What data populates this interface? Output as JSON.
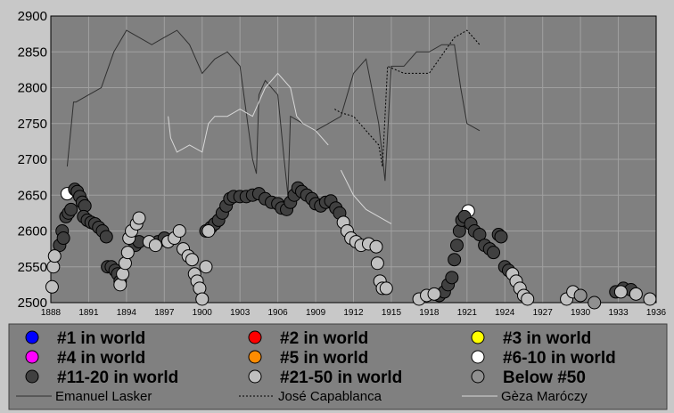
{
  "chart_data": {
    "type": "scatter",
    "xlim": [
      1888,
      1936
    ],
    "ylim": [
      2500,
      2900
    ],
    "xticks": [
      1888,
      1891,
      1894,
      1897,
      1900,
      1903,
      1906,
      1909,
      1912,
      1915,
      1918,
      1921,
      1924,
      1927,
      1930,
      1933,
      1936
    ],
    "yticks": [
      2500,
      2550,
      2600,
      2650,
      2700,
      2750,
      2800,
      2850,
      2900
    ],
    "grid": true,
    "series": [
      {
        "name": "#1 in world",
        "color": "#0000ff",
        "mode": "markers",
        "x": [],
        "values": []
      },
      {
        "name": "#2 in world",
        "color": "#ff0000",
        "mode": "markers",
        "x": [],
        "values": []
      },
      {
        "name": "#3 in world",
        "color": "#ffff00",
        "mode": "markers",
        "x": [],
        "values": []
      },
      {
        "name": "#4 in world",
        "color": "#ff00ff",
        "mode": "markers",
        "x": [],
        "values": []
      },
      {
        "name": "#5 in world",
        "color": "#ff8c00",
        "mode": "markers",
        "x": [],
        "values": []
      },
      {
        "name": "#6-10 in world",
        "color": "#ffffff",
        "mode": "markers",
        "x": [
          1889.3,
          1921.1
        ],
        "values": [
          2652,
          2628
        ]
      },
      {
        "name": "#11-20 in world",
        "color": "#404040",
        "mode": "markers",
        "x": [
          1888.7,
          1888.9,
          1889.0,
          1889.2,
          1889.4,
          1889.6,
          1889.9,
          1890.1,
          1890.3,
          1890.5,
          1890.7,
          1890.6,
          1890.9,
          1891.2,
          1891.5,
          1891.8,
          1892.1,
          1892.4,
          1892.5,
          1892.8,
          1893.1,
          1893.3,
          1893.5,
          1894.7,
          1895.0,
          1896.5,
          1897.0,
          1900.3,
          1900.7,
          1901.0,
          1901.3,
          1901.6,
          1901.9,
          1902.2,
          1902.5,
          1903.0,
          1903.5,
          1904.0,
          1904.5,
          1905.0,
          1905.5,
          1906.0,
          1906.3,
          1906.7,
          1907.0,
          1907.3,
          1907.6,
          1907.9,
          1908.3,
          1908.7,
          1909.0,
          1909.4,
          1909.8,
          1910.2,
          1910.6,
          1910.9,
          1918.8,
          1919.2,
          1919.5,
          1919.8,
          1920.0,
          1920.2,
          1920.4,
          1920.6,
          1920.8,
          1921.3,
          1921.6,
          1922.0,
          1922.4,
          1922.8,
          1923.1,
          1923.5,
          1923.7,
          1924.0,
          1924.3,
          1932.8,
          1933.4,
          1934.0
        ],
        "values": [
          2580,
          2600,
          2590,
          2620,
          2625,
          2630,
          2658,
          2655,
          2648,
          2640,
          2635,
          2620,
          2615,
          2612,
          2610,
          2605,
          2600,
          2592,
          2550,
          2550,
          2545,
          2540,
          2530,
          2580,
          2585,
          2585,
          2590,
          2600,
          2605,
          2610,
          2615,
          2625,
          2635,
          2645,
          2648,
          2648,
          2648,
          2650,
          2652,
          2645,
          2640,
          2638,
          2632,
          2630,
          2640,
          2650,
          2660,
          2655,
          2650,
          2645,
          2638,
          2635,
          2640,
          2642,
          2632,
          2625,
          2510,
          2515,
          2525,
          2535,
          2560,
          2580,
          2600,
          2615,
          2620,
          2610,
          2600,
          2595,
          2580,
          2575,
          2570,
          2595,
          2592,
          2550,
          2545,
          2515,
          2520,
          2518
        ]
      },
      {
        "name": "#21-50 in world",
        "color": "#c0c0c0",
        "mode": "markers",
        "x": [
          1888.1,
          1888.2,
          1888.3,
          1893.5,
          1893.7,
          1893.9,
          1894.1,
          1894.2,
          1894.4,
          1894.8,
          1895.0,
          1895.8,
          1896.3,
          1897.3,
          1897.8,
          1898.2,
          1898.5,
          1898.9,
          1899.2,
          1899.4,
          1899.6,
          1899.8,
          1900.0,
          1900.3,
          1900.5,
          1911.2,
          1911.5,
          1911.8,
          1912.2,
          1912.6,
          1913.2,
          1913.8,
          1913.9,
          1914.1,
          1914.3,
          1914.6,
          1917.2,
          1917.8,
          1918.4,
          1924.6,
          1924.9,
          1925.2,
          1925.5,
          1925.8,
          1928.9,
          1929.4,
          1933.2,
          1934.4,
          1935.5
        ],
        "values": [
          2522,
          2550,
          2565,
          2525,
          2540,
          2555,
          2570,
          2590,
          2600,
          2610,
          2618,
          2585,
          2580,
          2585,
          2590,
          2600,
          2575,
          2565,
          2560,
          2540,
          2530,
          2520,
          2505,
          2550,
          2600,
          2612,
          2600,
          2590,
          2585,
          2580,
          2582,
          2578,
          2555,
          2530,
          2520,
          2520,
          2505,
          2510,
          2512,
          2540,
          2530,
          2520,
          2510,
          2505,
          2505,
          2515,
          2515,
          2512,
          2505
        ]
      },
      {
        "name": "Below #50",
        "color": "#909090",
        "mode": "markers",
        "x": [
          1930.0,
          1931.1
        ],
        "values": [
          2510,
          2500
        ]
      },
      {
        "name": "Emanuel Lasker",
        "color": "#303030",
        "mode": "lines",
        "dash": "none",
        "x": [
          1889.3,
          1889.8,
          1890.0,
          1891.0,
          1892.0,
          1893.0,
          1894.0,
          1895.0,
          1896.0,
          1897.0,
          1898.0,
          1899.0,
          1900.0,
          1901.0,
          1902.0,
          1903.0,
          1904.0,
          1904.3,
          1904.5,
          1905.0,
          1906.0,
          1906.5,
          1906.8,
          1907.0,
          1908.0,
          1909.0,
          1910.0,
          1911.0,
          1912.0,
          1913.0,
          1914.0,
          1914.5,
          1915.0,
          1916.0,
          1917.0,
          1918.0,
          1919.0,
          1920.0,
          1920.5,
          1921.0,
          1922.0
        ],
        "values": [
          2690,
          2780,
          2780,
          2790,
          2800,
          2850,
          2880,
          2870,
          2860,
          2870,
          2880,
          2860,
          2820,
          2840,
          2850,
          2830,
          2700,
          2680,
          2790,
          2810,
          2790,
          2700,
          2650,
          2760,
          2750,
          2740,
          2750,
          2760,
          2820,
          2840,
          2750,
          2670,
          2830,
          2830,
          2850,
          2850,
          2860,
          2860,
          2800,
          2750,
          2740
        ]
      },
      {
        "name": "José Capablanca",
        "color": "#000000",
        "mode": "lines",
        "dash": "dotted",
        "x": [
          1910.5,
          1911.0,
          1912.0,
          1913.0,
          1914.0,
          1914.3,
          1914.7,
          1916.0,
          1918.0,
          1920.0,
          1921.0,
          1922.0
        ],
        "values": [
          2770,
          2765,
          2760,
          2740,
          2720,
          2690,
          2830,
          2820,
          2820,
          2870,
          2880,
          2860
        ]
      },
      {
        "name": "Gèza Maróczy",
        "color": "#d8d8d8",
        "mode": "lines",
        "dash": "none",
        "x": [
          1897.3,
          1897.5,
          1898.0,
          1899.0,
          1900.0,
          1900.5,
          1901.0,
          1902.0,
          1903.0,
          1904.0,
          1905.0,
          1906.0,
          1907.0,
          1907.5,
          1908.0,
          1909.0,
          1910.0,
          1910.5,
          1911.0,
          1912.0,
          1913.0,
          1915.0
        ],
        "values": [
          2760,
          2730,
          2710,
          2720,
          2710,
          2750,
          2760,
          2760,
          2770,
          2760,
          2800,
          2820,
          2800,
          2760,
          2750,
          2740,
          2720,
          null,
          2685,
          2650,
          2630,
          2610
        ]
      }
    ]
  }
}
